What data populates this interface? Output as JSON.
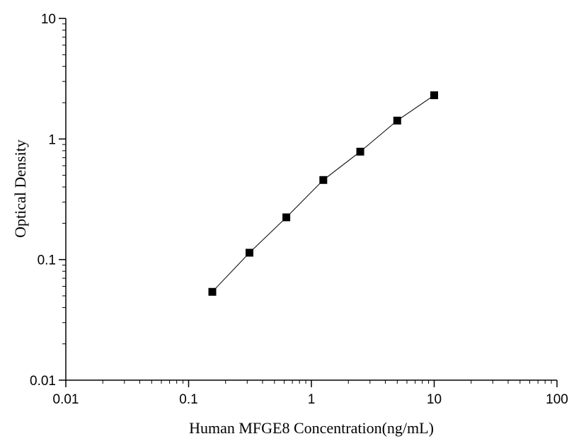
{
  "chart_data": {
    "type": "line",
    "title": "",
    "xlabel": "Human MFGE8 Concentration(ng/mL)",
    "ylabel": "Optical Density",
    "xscale": "log",
    "yscale": "log",
    "xlim": [
      0.01,
      100
    ],
    "ylim": [
      0.01,
      10
    ],
    "x_ticks": [
      0.01,
      0.1,
      1,
      10,
      100
    ],
    "x_tick_labels": [
      "0.01",
      "0.1",
      "1",
      "10",
      "100"
    ],
    "y_ticks": [
      0.01,
      0.1,
      1,
      10
    ],
    "y_tick_labels": [
      "0.01",
      "0.1",
      "1",
      "10"
    ],
    "grid": false,
    "legend": "none",
    "series": [
      {
        "x": [
          0.156,
          0.313,
          0.625,
          1.25,
          2.5,
          5,
          10
        ],
        "y": [
          0.054,
          0.114,
          0.224,
          0.457,
          0.785,
          1.421,
          2.305
        ],
        "marker": "square",
        "color": "#000000"
      }
    ]
  }
}
